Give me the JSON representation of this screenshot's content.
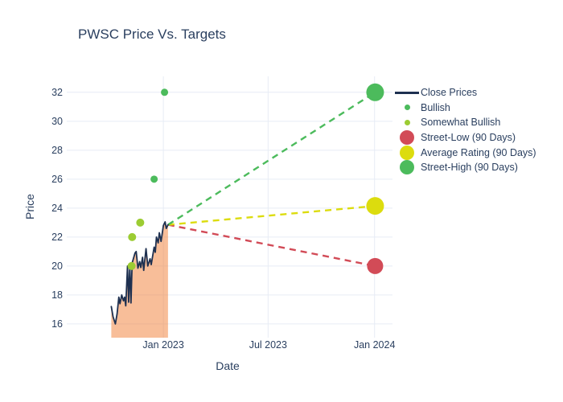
{
  "title": "PWSC Price Vs. Targets",
  "axes": {
    "x_label": "Date",
    "y_label": "Price"
  },
  "colors": {
    "text": "#2a3f5f",
    "grid": "#e7ecf5",
    "close_line": "#1e3050",
    "close_fill": "rgba(241,125,51,0.5)",
    "bullish": "#4cbb5c",
    "somewhat_bullish": "#9ccc33",
    "street_low": "#d24b57",
    "average_rating": "#dcdc0e",
    "street_high": "#4cbb5c",
    "background": "#ffffff"
  },
  "legend": {
    "items": [
      {
        "label": "Close Prices",
        "swatch": "line",
        "color": "#1e3050"
      },
      {
        "label": "Bullish",
        "swatch": "dot-small",
        "color": "#4cbb5c"
      },
      {
        "label": "Somewhat Bullish",
        "swatch": "dot-small",
        "color": "#9ccc33"
      },
      {
        "label": "Street-Low (90 Days)",
        "swatch": "dot-large",
        "color": "#d24b57"
      },
      {
        "label": "Average Rating (90 Days)",
        "swatch": "dot-large",
        "color": "#dcdc0e"
      },
      {
        "label": "Street-High (90 Days)",
        "swatch": "dot-large",
        "color": "#4cbb5c"
      }
    ]
  },
  "chart_data": {
    "type": "line",
    "title": "PWSC Price Vs. Targets",
    "xlabel": "Date",
    "ylabel": "Price",
    "grid": true,
    "legend_position": "right",
    "x_axis": {
      "range": [
        "2022-07-18",
        "2024-02-01"
      ],
      "ticks": [
        {
          "label": "Jan 2023",
          "date": "2023-01-01"
        },
        {
          "label": "Jul 2023",
          "date": "2023-07-01"
        },
        {
          "label": "Jan 2024",
          "date": "2024-01-01"
        }
      ]
    },
    "y_axis": {
      "range": [
        15.05,
        33.1
      ],
      "ticks": [
        16,
        18,
        20,
        22,
        24,
        26,
        28,
        30,
        32
      ]
    },
    "series": [
      {
        "name": "Close Prices",
        "type": "line",
        "color": "#1e3050",
        "fill": "rgba(241,125,51,0.5)",
        "points": [
          [
            "2022-10-03",
            17.2
          ],
          [
            "2022-10-06",
            16.5
          ],
          [
            "2022-10-10",
            16.0
          ],
          [
            "2022-10-13",
            16.7
          ],
          [
            "2022-10-16",
            17.85
          ],
          [
            "2022-10-18",
            17.4
          ],
          [
            "2022-10-21",
            18.0
          ],
          [
            "2022-10-24",
            17.6
          ],
          [
            "2022-10-26",
            17.85
          ],
          [
            "2022-10-28",
            17.25
          ],
          [
            "2022-10-31",
            20.0
          ],
          [
            "2022-11-02",
            17.5
          ],
          [
            "2022-11-04",
            20.1
          ],
          [
            "2022-11-06",
            17.45
          ],
          [
            "2022-11-08",
            20.2
          ],
          [
            "2022-11-13",
            20.9
          ],
          [
            "2022-11-15",
            21.0
          ],
          [
            "2022-11-18",
            19.85
          ],
          [
            "2022-11-21",
            20.3
          ],
          [
            "2022-11-23",
            19.9
          ],
          [
            "2022-11-26",
            20.6
          ],
          [
            "2022-11-28",
            19.7
          ],
          [
            "2022-12-02",
            21.2
          ],
          [
            "2022-12-05",
            20.0
          ],
          [
            "2022-12-09",
            20.5
          ],
          [
            "2022-12-11",
            20.1
          ],
          [
            "2022-12-16",
            21.3
          ],
          [
            "2022-12-18",
            20.95
          ],
          [
            "2022-12-20",
            22.0
          ],
          [
            "2022-12-23",
            21.6
          ],
          [
            "2022-12-25",
            22.3
          ],
          [
            "2022-12-28",
            21.7
          ],
          [
            "2023-01-01",
            22.8
          ],
          [
            "2023-01-04",
            23.05
          ],
          [
            "2023-01-06",
            22.6
          ],
          [
            "2023-01-09",
            22.85
          ]
        ]
      },
      {
        "name": "Bullish",
        "type": "scatter",
        "color": "#4cbb5c",
        "r": 4.5,
        "points": [
          [
            "2022-12-16",
            26
          ],
          [
            "2023-01-03",
            32
          ]
        ]
      },
      {
        "name": "Somewhat Bullish",
        "type": "scatter",
        "color": "#9ccc33",
        "r": 5,
        "points": [
          [
            "2022-11-07",
            20
          ],
          [
            "2022-11-08",
            22
          ],
          [
            "2022-11-22",
            23
          ]
        ]
      },
      {
        "name": "Street-Low (90 Days)",
        "type": "target",
        "color": "#d24b57",
        "r": 10,
        "dash": "8,6",
        "point": [
          "2024-01-02",
          20
        ]
      },
      {
        "name": "Average Rating (90 Days)",
        "type": "target",
        "color": "#dcdc0e",
        "r": 11,
        "dash": "8,6",
        "point": [
          "2024-01-02",
          24.15
        ]
      },
      {
        "name": "Street-High (90 Days)",
        "type": "target",
        "color": "#4cbb5c",
        "r": 11,
        "dash": "8,6",
        "point": [
          "2024-01-02",
          32
        ]
      }
    ]
  }
}
